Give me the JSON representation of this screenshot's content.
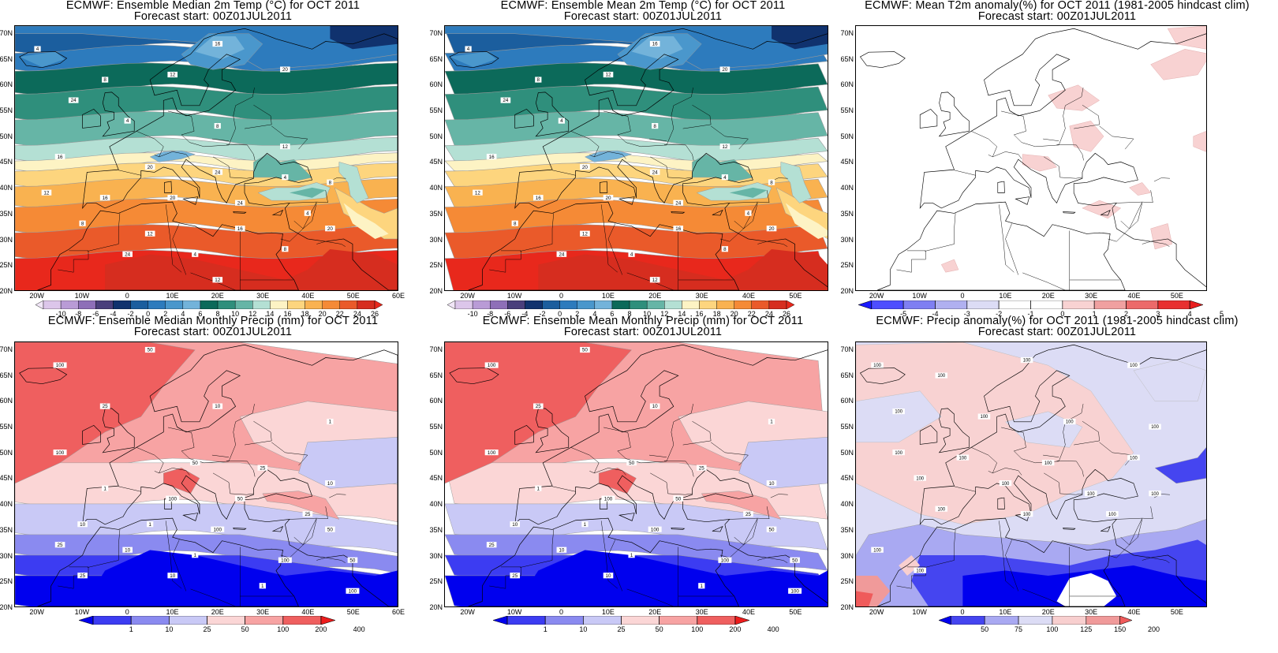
{
  "panels": [
    {
      "title_line1": "ECMWF: Ensemble Median 2m Temp (°C) for OCT 2011",
      "title_line2": "Forecast start: 00Z01JUL2011",
      "field": "temperature",
      "x_ticks": [
        "20W",
        "10W",
        "0",
        "10E",
        "20E",
        "30E",
        "40E",
        "50E",
        "60E"
      ],
      "y_ticks": [
        "70N",
        "65N",
        "60N",
        "55N",
        "50N",
        "45N",
        "40N",
        "35N",
        "30N",
        "25N",
        "20N"
      ],
      "legend_labels": [
        "-10",
        "-8",
        "-6",
        "-4",
        "-2",
        "0",
        "2",
        "4",
        "6",
        "8",
        "10",
        "12",
        "14",
        "16",
        "18",
        "20",
        "22",
        "24",
        "26"
      ],
      "legend_colors": [
        "#f1e6f7",
        "#dcc6ea",
        "#b99bd6",
        "#8e6fb8",
        "#4a3f7c",
        "#10326e",
        "#1b5e9e",
        "#2d7bbd",
        "#4a97cc",
        "#73b3da",
        "#0c6a5a",
        "#2f8f7c",
        "#66b5a6",
        "#b4e0d4",
        "#fdf3c4",
        "#fdd57e",
        "#f9b250",
        "#f58a36",
        "#ea5a2a",
        "#d62d1f",
        "#e8281c"
      ],
      "contour_labels": [
        "4",
        "8",
        "12",
        "16",
        "20",
        "24"
      ]
    },
    {
      "title_line1": "ECMWF: Ensemble Mean 2m Temp (°C) for OCT 2011",
      "title_line2": "Forecast start: 00Z01JUL2011",
      "field": "temperature",
      "x_ticks": [
        "20W",
        "10W",
        "0",
        "10E",
        "20E",
        "30E",
        "40E",
        "50E"
      ],
      "y_ticks": [
        "70N",
        "65N",
        "60N",
        "55N",
        "50N",
        "45N",
        "40N",
        "35N",
        "30N",
        "25N",
        "20N"
      ],
      "legend_labels": [
        "-10",
        "-8",
        "-6",
        "-4",
        "-2",
        "0",
        "2",
        "4",
        "6",
        "8",
        "10",
        "12",
        "14",
        "16",
        "18",
        "20",
        "22",
        "24",
        "26"
      ],
      "legend_colors": [
        "#f1e6f7",
        "#dcc6ea",
        "#b99bd6",
        "#8e6fb8",
        "#4a3f7c",
        "#10326e",
        "#1b5e9e",
        "#2d7bbd",
        "#4a97cc",
        "#73b3da",
        "#0c6a5a",
        "#2f8f7c",
        "#66b5a6",
        "#b4e0d4",
        "#fdf3c4",
        "#fdd57e",
        "#f9b250",
        "#f58a36",
        "#ea5a2a",
        "#d62d1f",
        "#e8281c"
      ],
      "contour_labels": [
        "4",
        "8",
        "12",
        "16",
        "20",
        "24"
      ]
    },
    {
      "title_line1": "ECMWF: Mean T2m anomaly(%) for OCT 2011 (1981-2005 hindcast clim)",
      "title_line2": "Forecast start: 00Z01JUL2011",
      "field": "t_anomaly",
      "x_ticks": [
        "20W",
        "10W",
        "0",
        "10E",
        "20E",
        "30E",
        "40E",
        "50E"
      ],
      "y_ticks": [
        "70N",
        "65N",
        "60N",
        "55N",
        "50N",
        "45N",
        "40N",
        "35N",
        "30N",
        "25N",
        "20N"
      ],
      "legend_labels": [
        "-5",
        "-4",
        "-3",
        "-2",
        "-1",
        "0",
        "1",
        "2",
        "3",
        "4",
        "5"
      ],
      "legend_colors": [
        "#1a1aff",
        "#4d4dff",
        "#7f7ff2",
        "#b0b0f0",
        "#dcdcf5",
        "#ffffff",
        "#ffffff",
        "#f8d2d2",
        "#f0a0a0",
        "#ec6a6a",
        "#e83030",
        "#e81e1e"
      ],
      "contour_labels": []
    },
    {
      "title_line1": "ECMWF: Ensemble Median Monthly Precip (mm) for OCT 2011",
      "title_line2": "Forecast start: 00Z01JUL2011",
      "field": "precip",
      "x_ticks": [
        "20W",
        "10W",
        "0",
        "10E",
        "20E",
        "30E",
        "40E",
        "50E",
        "60E"
      ],
      "y_ticks": [
        "70N",
        "65N",
        "60N",
        "55N",
        "50N",
        "45N",
        "40N",
        "35N",
        "30N",
        "25N",
        "20N"
      ],
      "legend_labels": [
        "1",
        "10",
        "25",
        "50",
        "100",
        "200",
        "400"
      ],
      "legend_colors": [
        "#0000ee",
        "#3c3cf2",
        "#8a8af0",
        "#c9c9f6",
        "#fbd6d6",
        "#f7a3a3",
        "#ef5f5f",
        "#ee1c1c"
      ],
      "contour_labels": [
        "100",
        "50",
        "25",
        "10",
        "1"
      ]
    },
    {
      "title_line1": "ECMWF: Ensemble Mean Monthly Precip (mm) for OCT 2011",
      "title_line2": "Forecast start: 00Z01JUL2011",
      "field": "precip",
      "x_ticks": [
        "20W",
        "10W",
        "0",
        "10E",
        "20E",
        "30E",
        "40E",
        "50E"
      ],
      "y_ticks": [
        "70N",
        "65N",
        "60N",
        "55N",
        "50N",
        "45N",
        "40N",
        "35N",
        "30N",
        "25N",
        "20N"
      ],
      "legend_labels": [
        "1",
        "10",
        "25",
        "50",
        "100",
        "200",
        "400"
      ],
      "legend_colors": [
        "#0000ee",
        "#3c3cf2",
        "#8a8af0",
        "#c9c9f6",
        "#fbd6d6",
        "#f7a3a3",
        "#ef5f5f",
        "#ee1c1c"
      ],
      "contour_labels": [
        "100",
        "50",
        "25",
        "10",
        "1"
      ]
    },
    {
      "title_line1": "ECMWF: Precip anomaly(%) for OCT 2011 (1981-2005 hindcast clim)",
      "title_line2": "Forecast start: 00Z01JUL2011",
      "field": "p_anomaly",
      "x_ticks": [
        "20W",
        "10W",
        "0",
        "10E",
        "20E",
        "30E",
        "40E",
        "50E"
      ],
      "y_ticks": [
        "70N",
        "65N",
        "60N",
        "55N",
        "50N",
        "45N",
        "40N",
        "35N",
        "30N",
        "25N",
        "20N"
      ],
      "legend_labels": [
        "50",
        "75",
        "100",
        "125",
        "150",
        "200"
      ],
      "legend_colors": [
        "#0000ee",
        "#4545f0",
        "#a9a9f2",
        "#dcdcf5",
        "#f8cfcf",
        "#f09a9a",
        "#ef5b5b"
      ],
      "contour_labels": [
        "100"
      ]
    }
  ]
}
